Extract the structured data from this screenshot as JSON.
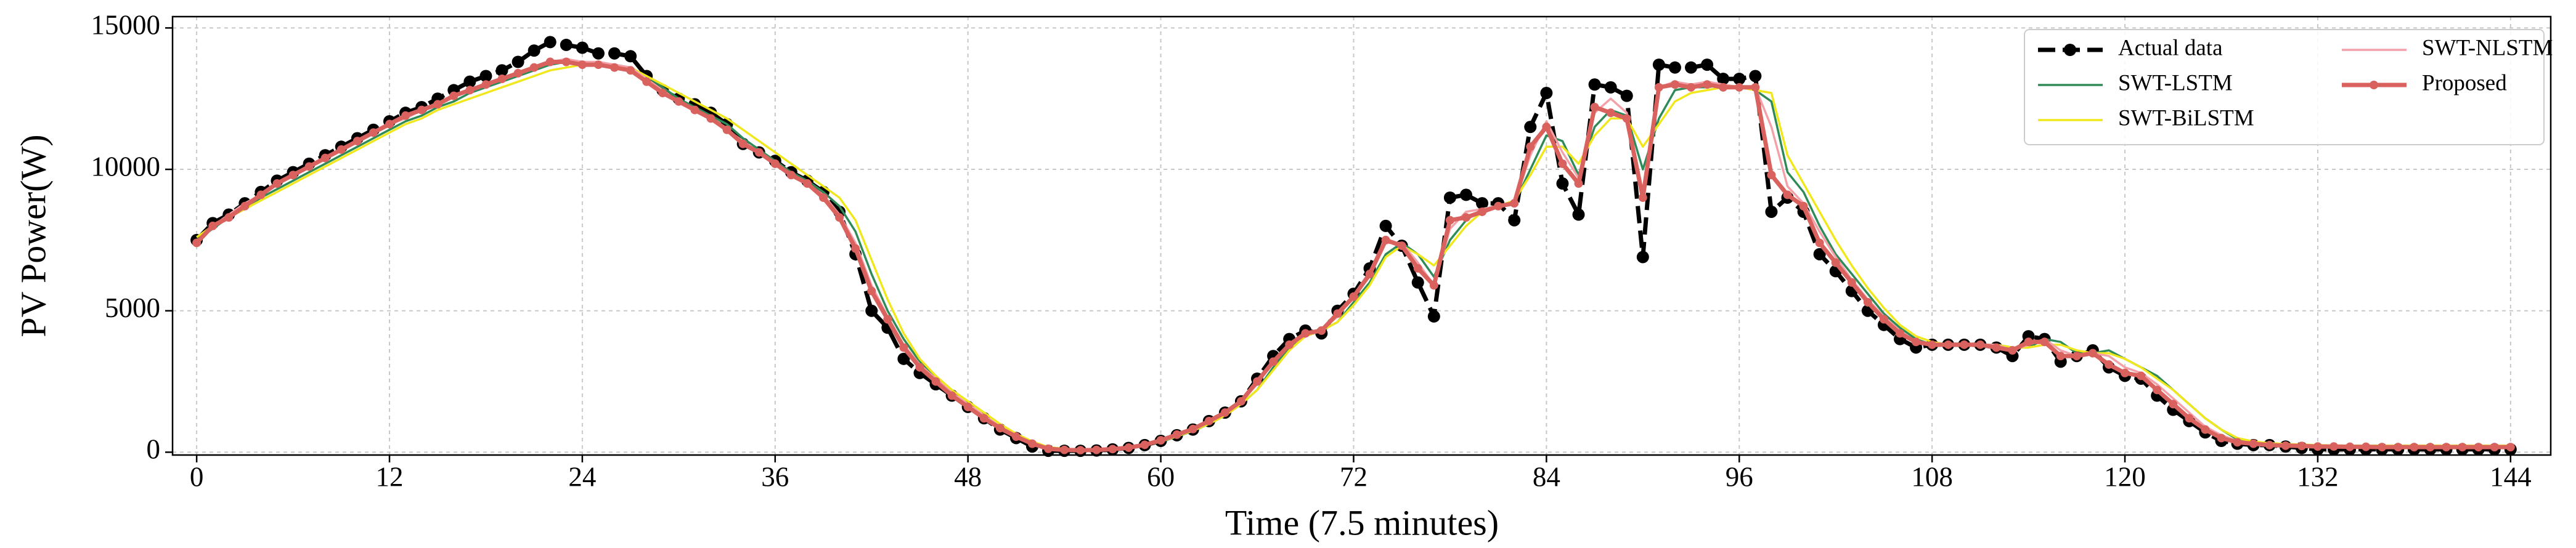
{
  "chart_data": {
    "type": "line",
    "xlabel": "Time (7.5 minutes)",
    "ylabel": "PV Power(W)",
    "x": [
      0,
      1,
      2,
      3,
      4,
      5,
      6,
      7,
      8,
      9,
      10,
      11,
      12,
      13,
      14,
      15,
      16,
      17,
      18,
      19,
      20,
      21,
      22,
      23,
      24,
      25,
      26,
      27,
      28,
      29,
      30,
      31,
      32,
      33,
      34,
      35,
      36,
      37,
      38,
      39,
      40,
      41,
      42,
      43,
      44,
      45,
      46,
      47,
      48,
      49,
      50,
      51,
      52,
      53,
      54,
      55,
      56,
      57,
      58,
      59,
      60,
      61,
      62,
      63,
      64,
      65,
      66,
      67,
      68,
      69,
      70,
      71,
      72,
      73,
      74,
      75,
      76,
      77,
      78,
      79,
      80,
      81,
      82,
      83,
      84,
      85,
      86,
      87,
      88,
      89,
      90,
      91,
      92,
      93,
      94,
      95,
      96,
      97,
      98,
      99,
      100,
      101,
      102,
      103,
      104,
      105,
      106,
      107,
      108,
      109,
      110,
      111,
      112,
      113,
      114,
      115,
      116,
      117,
      118,
      119,
      120,
      121,
      122,
      123,
      124,
      125,
      126,
      127,
      128,
      129,
      130,
      131,
      132,
      133,
      134,
      135,
      136,
      137,
      138,
      139,
      140,
      141,
      142,
      143,
      144
    ],
    "series": [
      {
        "name": "Actual data",
        "color": "#000000",
        "marker": true,
        "dashed": true,
        "values": [
          7500,
          8100,
          8400,
          8800,
          9200,
          9600,
          9900,
          10200,
          10500,
          10800,
          11100,
          11400,
          11700,
          12000,
          12200,
          12500,
          12800,
          13100,
          13300,
          13500,
          13800,
          14200,
          14500,
          14400,
          14300,
          14100,
          14100,
          14000,
          13300,
          12800,
          12500,
          12300,
          12000,
          11600,
          10900,
          10600,
          10300,
          9900,
          9600,
          9200,
          8500,
          7000,
          5000,
          4400,
          3300,
          2800,
          2400,
          2000,
          1600,
          1200,
          800,
          500,
          200,
          50,
          50,
          50,
          60,
          100,
          150,
          250,
          400,
          600,
          800,
          1100,
          1400,
          1800,
          2600,
          3400,
          4000,
          4300,
          4200,
          5000,
          5600,
          6500,
          8000,
          7300,
          6000,
          4800,
          9000,
          9100,
          8800,
          8800,
          8200,
          11500,
          12700,
          9500,
          8400,
          13000,
          12900,
          12600,
          6900,
          13700,
          13600,
          13600,
          13700,
          13200,
          13200,
          13300,
          8500,
          9000,
          8500,
          7000,
          6400,
          5700,
          5000,
          4500,
          4000,
          3700,
          3800,
          3800,
          3800,
          3800,
          3700,
          3400,
          4100,
          4000,
          3200,
          3400,
          3600,
          3000,
          2700,
          2600,
          2000,
          1500,
          1100,
          700,
          400,
          300,
          250,
          250,
          200,
          150,
          100,
          100,
          100,
          100,
          100,
          100,
          100,
          100,
          100,
          100,
          100,
          100,
          100
        ]
      },
      {
        "name": "SWT-LSTM",
        "color": "#2e8b57",
        "marker": false,
        "dashed": false,
        "values": [
          7500,
          7900,
          8300,
          8600,
          9000,
          9300,
          9600,
          9900,
          10200,
          10500,
          10800,
          11100,
          11400,
          11700,
          11900,
          12200,
          12400,
          12700,
          12900,
          13100,
          13300,
          13500,
          13700,
          13800,
          13800,
          13700,
          13700,
          13600,
          13300,
          12900,
          12500,
          12200,
          11900,
          11600,
          11100,
          10700,
          10300,
          9900,
          9600,
          9200,
          8700,
          7800,
          6300,
          5000,
          4000,
          3200,
          2600,
          2100,
          1700,
          1300,
          900,
          600,
          350,
          150,
          100,
          80,
          90,
          110,
          150,
          230,
          370,
          550,
          750,
          1000,
          1300,
          1700,
          2200,
          3000,
          3700,
          4100,
          4300,
          4600,
          5300,
          6000,
          7000,
          7400,
          7000,
          6200,
          7500,
          8200,
          8600,
          8700,
          8800,
          10000,
          11200,
          11000,
          9800,
          11500,
          12100,
          11900,
          10000,
          11800,
          12800,
          12900,
          12900,
          13000,
          12900,
          12800,
          12400,
          9900,
          9200,
          8000,
          7000,
          6300,
          5600,
          4900,
          4400,
          4000,
          3800,
          3800,
          3800,
          3800,
          3800,
          3700,
          3700,
          4000,
          3900,
          3500,
          3500,
          3600,
          3300,
          3000,
          2700,
          2200,
          1700,
          1200,
          800,
          450,
          350,
          300,
          270,
          250,
          230,
          220,
          210,
          200,
          200,
          200,
          200,
          200,
          200,
          200,
          200,
          200,
          200
        ]
      },
      {
        "name": "SWT-BiLSTM",
        "color": "#f0e81c",
        "marker": false,
        "dashed": false,
        "values": [
          7600,
          8000,
          8300,
          8600,
          8900,
          9200,
          9500,
          9800,
          10100,
          10400,
          10700,
          11000,
          11300,
          11600,
          11800,
          12100,
          12300,
          12500,
          12700,
          12900,
          13100,
          13300,
          13500,
          13600,
          13700,
          13700,
          13600,
          13600,
          13300,
          13000,
          12700,
          12400,
          12100,
          11800,
          11400,
          11000,
          10600,
          10200,
          9800,
          9400,
          9000,
          8200,
          6800,
          5400,
          4200,
          3300,
          2700,
          2200,
          1800,
          1400,
          1000,
          650,
          380,
          180,
          120,
          100,
          100,
          120,
          160,
          240,
          380,
          560,
          760,
          1000,
          1300,
          1700,
          2200,
          2900,
          3600,
          4100,
          4300,
          4600,
          5200,
          5900,
          6900,
          7300,
          7000,
          6600,
          7300,
          8000,
          8500,
          8700,
          8900,
          9800,
          10800,
          10800,
          10200,
          11200,
          11800,
          11800,
          10800,
          11600,
          12400,
          12700,
          12800,
          12900,
          12900,
          12800,
          12700,
          10500,
          9500,
          8500,
          7500,
          6600,
          5800,
          5100,
          4500,
          4100,
          3900,
          3800,
          3800,
          3800,
          3800,
          3700,
          3700,
          3800,
          3800,
          3600,
          3500,
          3500,
          3300,
          3000,
          2600,
          2200,
          1700,
          1200,
          800,
          500,
          380,
          320,
          290,
          270,
          250,
          240,
          230,
          230,
          230,
          230,
          230,
          230,
          230,
          230,
          230,
          230,
          230
        ]
      },
      {
        "name": "SWT-NLSTM",
        "color": "#f4a0a8",
        "marker": false,
        "dashed": false,
        "values": [
          7400,
          8000,
          8400,
          8800,
          9100,
          9500,
          9800,
          10100,
          10400,
          10700,
          11000,
          11300,
          11600,
          11800,
          12100,
          12300,
          12600,
          12800,
          13000,
          13200,
          13400,
          13600,
          13800,
          13900,
          13800,
          13800,
          13700,
          13600,
          13200,
          12800,
          12400,
          12100,
          11800,
          11400,
          11000,
          10600,
          10200,
          9800,
          9500,
          9100,
          8400,
          7400,
          5900,
          4800,
          3800,
          3100,
          2600,
          2100,
          1700,
          1300,
          900,
          600,
          320,
          130,
          90,
          80,
          90,
          110,
          160,
          250,
          400,
          600,
          800,
          1100,
          1400,
          1800,
          2400,
          3200,
          3800,
          4200,
          4300,
          4800,
          5500,
          6200,
          7400,
          7400,
          6700,
          5900,
          7900,
          8500,
          8600,
          8700,
          8800,
          10500,
          11700,
          10600,
          9700,
          12000,
          12500,
          12000,
          9000,
          12900,
          13100,
          13000,
          13100,
          13000,
          12900,
          12900,
          11500,
          9400,
          8800,
          7800,
          6900,
          6100,
          5400,
          4800,
          4300,
          3900,
          3800,
          3800,
          3800,
          3800,
          3800,
          3600,
          3800,
          4000,
          3600,
          3400,
          3500,
          3400,
          3000,
          2800,
          2400,
          1900,
          1400,
          900,
          600,
          400,
          320,
          280,
          250,
          230,
          220,
          210,
          200,
          200,
          200,
          200,
          200,
          200,
          200,
          200,
          200,
          200,
          200
        ]
      },
      {
        "name": "Proposed",
        "color": "#d9625e",
        "marker": true,
        "dashed": false,
        "values": [
          7400,
          8000,
          8300,
          8700,
          9100,
          9500,
          9800,
          10100,
          10400,
          10700,
          11000,
          11300,
          11600,
          11900,
          12100,
          12300,
          12600,
          12800,
          13000,
          13200,
          13400,
          13600,
          13800,
          13800,
          13700,
          13700,
          13600,
          13500,
          13100,
          12700,
          12400,
          12100,
          11800,
          11400,
          10900,
          10600,
          10200,
          9800,
          9500,
          9000,
          8300,
          7200,
          5700,
          4700,
          3700,
          3000,
          2500,
          2000,
          1600,
          1200,
          850,
          550,
          300,
          120,
          80,
          70,
          80,
          110,
          160,
          260,
          420,
          620,
          820,
          1100,
          1400,
          1800,
          2500,
          3200,
          3800,
          4200,
          4300,
          4900,
          5500,
          6300,
          7500,
          7300,
          6500,
          5900,
          8200,
          8300,
          8500,
          8700,
          8800,
          10800,
          11500,
          10200,
          9500,
          12200,
          12000,
          11800,
          9000,
          12900,
          13000,
          12900,
          13000,
          12900,
          12900,
          12900,
          9800,
          9100,
          8700,
          7400,
          6700,
          6000,
          5300,
          4700,
          4200,
          3900,
          3800,
          3800,
          3800,
          3800,
          3700,
          3600,
          3900,
          3900,
          3400,
          3400,
          3500,
          3100,
          2800,
          2700,
          2200,
          1700,
          1200,
          800,
          500,
          350,
          300,
          250,
          230,
          220,
          200,
          200,
          190,
          190,
          180,
          180,
          180,
          180,
          180,
          180,
          180,
          180,
          180
        ]
      }
    ],
    "xlim": [
      -1.5,
      146.5
    ],
    "ylim": [
      -100,
      15400
    ],
    "xticks": [
      0,
      12,
      24,
      36,
      48,
      60,
      72,
      84,
      96,
      108,
      120,
      132,
      144
    ],
    "yticks": [
      0,
      5000,
      10000,
      15000
    ],
    "grid": true,
    "legend": "upper right"
  }
}
